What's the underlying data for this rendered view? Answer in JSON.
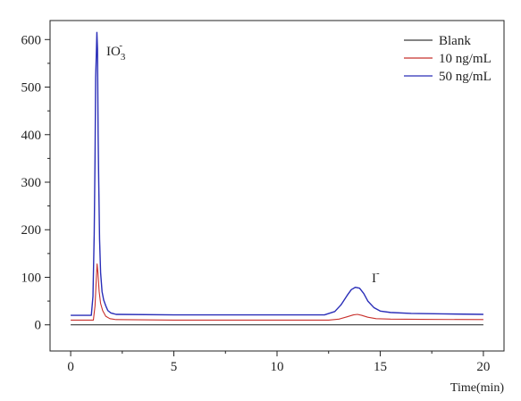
{
  "chart_data": {
    "type": "line",
    "title": "",
    "xlabel": "Time(min)",
    "ylabel": "",
    "xlim": [
      -1,
      21
    ],
    "ylim": [
      -55,
      640
    ],
    "x_ticks": [
      0,
      5,
      10,
      15,
      20
    ],
    "y_ticks": [
      0,
      100,
      200,
      300,
      400,
      500,
      600
    ],
    "x_tick_labels": [
      "0",
      "5",
      "10",
      "15",
      "20"
    ],
    "y_tick_labels": [
      "0",
      "100",
      "200",
      "300",
      "400",
      "500",
      "600"
    ],
    "grid": false,
    "legend_position": "top-right",
    "annotations": [
      {
        "text": "IO",
        "sub": "3",
        "sup": "-",
        "x": 1.3,
        "y": 615
      },
      {
        "text": "I",
        "sup": "-",
        "x": 14.0,
        "y": 98
      }
    ],
    "series": [
      {
        "name": "Blank",
        "color": "#3a3a3a",
        "points": [
          [
            0,
            0
          ],
          [
            20,
            0
          ]
        ]
      },
      {
        "name": "10 ng/mL",
        "color": "#c8302c",
        "points": [
          [
            0,
            10
          ],
          [
            1.1,
            10
          ],
          [
            1.18,
            40
          ],
          [
            1.24,
            95
          ],
          [
            1.28,
            128
          ],
          [
            1.32,
            110
          ],
          [
            1.38,
            70
          ],
          [
            1.45,
            45
          ],
          [
            1.55,
            30
          ],
          [
            1.7,
            18
          ],
          [
            1.9,
            13
          ],
          [
            2.2,
            11
          ],
          [
            5,
            10
          ],
          [
            10,
            10
          ],
          [
            12.5,
            10
          ],
          [
            13.0,
            12
          ],
          [
            13.4,
            17
          ],
          [
            13.7,
            21
          ],
          [
            13.9,
            22
          ],
          [
            14.1,
            20
          ],
          [
            14.4,
            16
          ],
          [
            14.8,
            13
          ],
          [
            15.5,
            12
          ],
          [
            17,
            11.5
          ],
          [
            20,
            11
          ]
        ]
      },
      {
        "name": "50 ng/mL",
        "color": "#2a2eb8",
        "points": [
          [
            0,
            20
          ],
          [
            1.0,
            20
          ],
          [
            1.08,
            60
          ],
          [
            1.14,
            190
          ],
          [
            1.18,
            350
          ],
          [
            1.21,
            520
          ],
          [
            1.24,
            565
          ],
          [
            1.27,
            615
          ],
          [
            1.3,
            580
          ],
          [
            1.33,
            400
          ],
          [
            1.36,
            300
          ],
          [
            1.4,
            180
          ],
          [
            1.45,
            110
          ],
          [
            1.52,
            70
          ],
          [
            1.6,
            52
          ],
          [
            1.7,
            40
          ],
          [
            1.8,
            30
          ],
          [
            1.95,
            25
          ],
          [
            2.2,
            22
          ],
          [
            5,
            21
          ],
          [
            10,
            21
          ],
          [
            12.3,
            21
          ],
          [
            12.8,
            28
          ],
          [
            13.1,
            42
          ],
          [
            13.4,
            62
          ],
          [
            13.6,
            74
          ],
          [
            13.8,
            79
          ],
          [
            14.0,
            77
          ],
          [
            14.2,
            66
          ],
          [
            14.4,
            50
          ],
          [
            14.7,
            36
          ],
          [
            15.0,
            29
          ],
          [
            15.5,
            26
          ],
          [
            16.5,
            24
          ],
          [
            18,
            23
          ],
          [
            20,
            22
          ]
        ]
      }
    ]
  }
}
